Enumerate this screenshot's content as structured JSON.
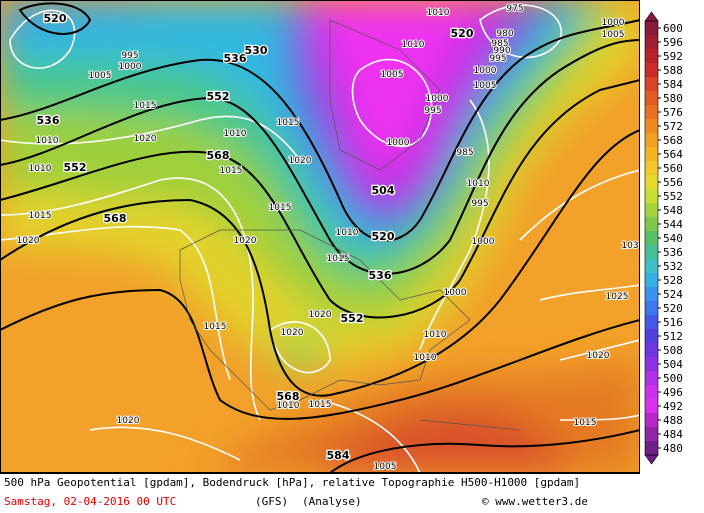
{
  "footer": {
    "title": "500 hPa Geopotential [gpdam], Bodendruck [hPa], relative Topographie H500-H1000 [gpdam]",
    "date": "Samstag, 02-04-2016  00 UTC",
    "model": "(GFS)",
    "run": "(Analyse)",
    "credit": "© www.wetter3.de"
  },
  "colorbar": {
    "levels": [
      600,
      596,
      592,
      588,
      584,
      580,
      576,
      572,
      568,
      564,
      560,
      556,
      552,
      548,
      544,
      540,
      536,
      532,
      528,
      524,
      520,
      516,
      512,
      508,
      504,
      500,
      496,
      492,
      488,
      484,
      480
    ],
    "colors": [
      "#8a1a3a",
      "#a01c30",
      "#b8202a",
      "#cc2a26",
      "#d94426",
      "#e25a24",
      "#e87222",
      "#ee8a20",
      "#f2a020",
      "#f4b424",
      "#f0c828",
      "#e6d82c",
      "#c8de30",
      "#a2d43a",
      "#7cc848",
      "#5ac068",
      "#44c094",
      "#3cc0c4",
      "#36b0e6",
      "#3a94ee",
      "#3e76ec",
      "#4458e6",
      "#5040de",
      "#7034e0",
      "#9030e4",
      "#b030e8",
      "#cc30ec",
      "#dc30f0",
      "#b828c8",
      "#9424a8",
      "#701e88"
    ]
  },
  "map": {
    "geopotential_labels": [
      "520",
      "536",
      "552",
      "536",
      "552",
      "568",
      "568",
      "504",
      "520",
      "536",
      "552",
      "568",
      "584",
      "520",
      "530"
    ],
    "pressure_labels": [
      "975",
      "1010",
      "1000",
      "1005",
      "995",
      "1000",
      "1005",
      "1015",
      "1020",
      "1010",
      "1015",
      "1020",
      "1015",
      "1015",
      "1020",
      "1010",
      "1015",
      "1020",
      "1020",
      "1015",
      "1010",
      "1015",
      "1020",
      "1005",
      "1015",
      "1020",
      "1025",
      "103",
      "1000",
      "1010",
      "1010",
      "1005",
      "1000",
      "995",
      "1000",
      "985",
      "1010",
      "995",
      "1010",
      "980",
      "985",
      "990",
      "995",
      "1000",
      "1005",
      "1010",
      "1015",
      "1020",
      "1010",
      "1000"
    ]
  }
}
